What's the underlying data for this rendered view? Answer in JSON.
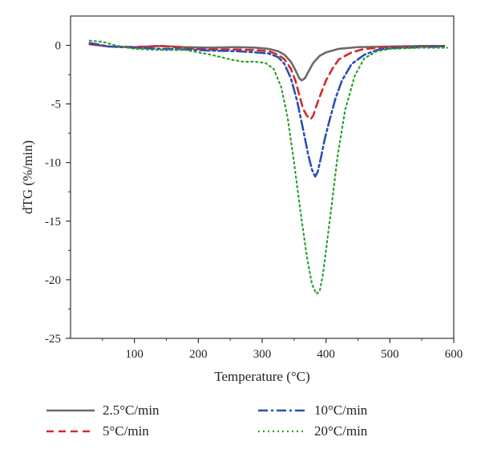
{
  "chart_data": {
    "type": "line",
    "xlabel": "Temperature (°C)",
    "ylabel": "dTG (%/min)",
    "xlim": [
      0,
      600
    ],
    "ylim": [
      -25,
      2.5
    ],
    "xticks": [
      100,
      200,
      300,
      400,
      500,
      600
    ],
    "yticks": [
      0,
      -5,
      -10,
      -15,
      -20,
      -25
    ],
    "grid": false,
    "legend_position": "bottom",
    "series": [
      {
        "name": "2.5°C/min",
        "color": "#6b6b6b",
        "style": "solid",
        "x": [
          30,
          60,
          100,
          140,
          180,
          220,
          260,
          290,
          310,
          325,
          335,
          345,
          352,
          358,
          362,
          367,
          372,
          380,
          390,
          400,
          420,
          450,
          500,
          550,
          585
        ],
        "y": [
          0.1,
          -0.1,
          -0.15,
          -0.05,
          -0.15,
          -0.2,
          -0.15,
          -0.2,
          -0.3,
          -0.5,
          -0.8,
          -1.4,
          -2.1,
          -2.8,
          -3.0,
          -2.8,
          -2.3,
          -1.5,
          -0.9,
          -0.6,
          -0.3,
          -0.15,
          -0.1,
          -0.05,
          -0.05
        ]
      },
      {
        "name": "5°C/min",
        "color": "#d42a2a",
        "style": "dashed",
        "x": [
          30,
          60,
          100,
          140,
          180,
          220,
          260,
          290,
          310,
          325,
          335,
          345,
          352,
          358,
          364,
          370,
          376,
          380,
          384,
          390,
          400,
          410,
          420,
          440,
          460,
          500,
          550,
          585
        ],
        "y": [
          0.1,
          -0.1,
          -0.15,
          -0.05,
          -0.25,
          -0.35,
          -0.35,
          -0.4,
          -0.5,
          -0.8,
          -1.2,
          -2.0,
          -3.0,
          -4.2,
          -5.4,
          -6.0,
          -6.3,
          -6.0,
          -5.3,
          -4.4,
          -3.0,
          -2.0,
          -1.2,
          -0.6,
          -0.3,
          -0.15,
          -0.1,
          -0.05
        ]
      },
      {
        "name": "10°C/min",
        "color": "#2b4fb3",
        "style": "dashdot",
        "x": [
          30,
          60,
          100,
          140,
          180,
          220,
          260,
          290,
          310,
          325,
          335,
          345,
          355,
          365,
          372,
          378,
          383,
          387,
          392,
          398,
          405,
          415,
          425,
          440,
          460,
          480,
          500,
          550,
          585
        ],
        "y": [
          0.2,
          -0.1,
          -0.2,
          -0.3,
          -0.35,
          -0.45,
          -0.5,
          -0.6,
          -0.7,
          -1.0,
          -1.6,
          -2.8,
          -4.8,
          -7.4,
          -9.3,
          -10.6,
          -11.2,
          -10.8,
          -9.6,
          -8.0,
          -6.5,
          -4.5,
          -3.0,
          -1.6,
          -0.8,
          -0.4,
          -0.25,
          -0.15,
          -0.1
        ]
      },
      {
        "name": "20°C/min",
        "color": "#2ca02c",
        "style": "dotted",
        "x": [
          30,
          50,
          70,
          100,
          140,
          180,
          220,
          250,
          270,
          290,
          305,
          318,
          330,
          340,
          350,
          360,
          370,
          378,
          385,
          390,
          395,
          400,
          408,
          418,
          430,
          445,
          460,
          480,
          500,
          550,
          590
        ],
        "y": [
          0.4,
          0.3,
          0.0,
          -0.3,
          -0.4,
          -0.4,
          -0.8,
          -1.2,
          -1.4,
          -1.4,
          -1.5,
          -2.0,
          -3.6,
          -6.2,
          -10.0,
          -14.2,
          -18.0,
          -20.4,
          -21.2,
          -21.0,
          -19.6,
          -17.5,
          -14.0,
          -9.5,
          -5.5,
          -2.6,
          -1.1,
          -0.5,
          -0.3,
          -0.2,
          -0.2
        ]
      }
    ]
  }
}
